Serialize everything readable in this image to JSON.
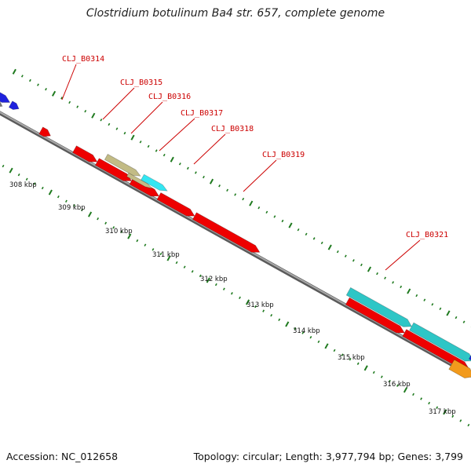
{
  "title": "Clostridium botulinum Ba4 str. 657, complete genome",
  "footer": {
    "accession": "Accession: NC_012658",
    "summary": "Topology: circular; Length: 3,977,794 bp; Genes: 3,799"
  },
  "colors": {
    "background": "#ffffff",
    "backbone": "#8a8a8a",
    "tick": "#1f7a1f",
    "label": "#cc0000",
    "red": "#ee0000",
    "cyan": "#2ec6c6",
    "brightcyan": "#33e6f2",
    "khaki": "#c2bb85",
    "blue": "#1f22dd",
    "gray": "#777777",
    "orange": "#f29a1c"
  },
  "gene_labels": [
    {
      "name": "CLJ_B0314"
    },
    {
      "name": "CLJ_B0315"
    },
    {
      "name": "CLJ_B0316"
    },
    {
      "name": "CLJ_B0317"
    },
    {
      "name": "CLJ_B0318"
    },
    {
      "name": "CLJ_B0319"
    },
    {
      "name": "CLJ_B0321"
    }
  ],
  "kbp_ticks": [
    {
      "label": "308 kbp"
    },
    {
      "label": "309 kbp"
    },
    {
      "label": "310 kbp"
    },
    {
      "label": "311 kbp"
    },
    {
      "label": "312 kbp"
    },
    {
      "label": "313 kbp"
    },
    {
      "label": "314 kbp"
    },
    {
      "label": "315 kbp"
    },
    {
      "label": "316 kbp"
    },
    {
      "label": "317 kbp"
    }
  ],
  "features": [
    {
      "color": "red"
    },
    {
      "color": "red"
    },
    {
      "color": "red"
    },
    {
      "color": "red"
    },
    {
      "color": "red"
    },
    {
      "color": "red"
    },
    {
      "color": "red"
    },
    {
      "color": "red"
    },
    {
      "color": "khaki"
    },
    {
      "color": "khaki"
    },
    {
      "color": "brightcyan"
    },
    {
      "color": "cyan"
    },
    {
      "color": "cyan"
    },
    {
      "color": "blue"
    },
    {
      "color": "blue"
    },
    {
      "color": "gray"
    },
    {
      "color": "blue"
    },
    {
      "color": "orange"
    }
  ]
}
